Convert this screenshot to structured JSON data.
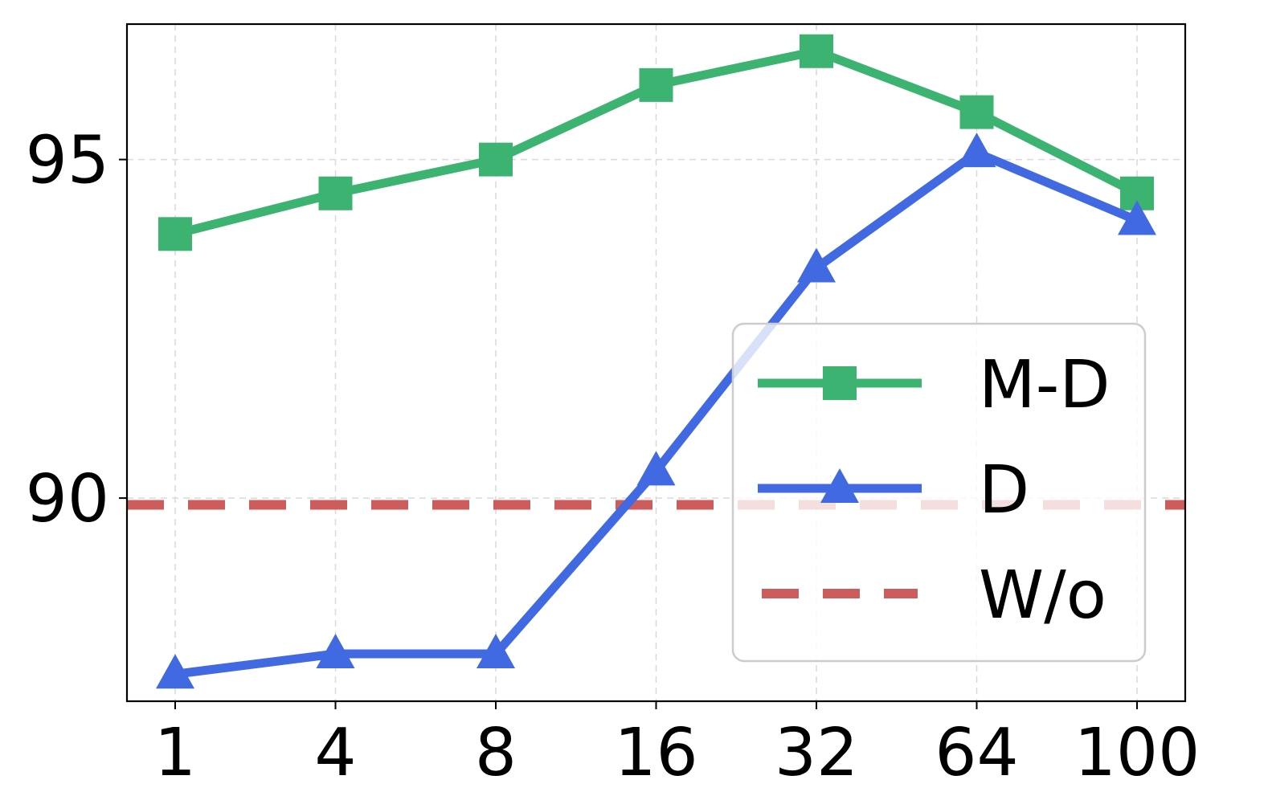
{
  "chart_data": {
    "type": "line",
    "categories": [
      "1",
      "4",
      "8",
      "16",
      "32",
      "64",
      "100"
    ],
    "yticks": [
      90,
      95
    ],
    "ylim": [
      87,
      97
    ],
    "grid": true,
    "legend_position": "center-right",
    "series": [
      {
        "name": "M-D",
        "values": [
          93.9,
          94.5,
          95.0,
          96.1,
          96.6,
          95.7,
          94.5
        ],
        "color": "#3cb371",
        "marker": "square",
        "style": "solid"
      },
      {
        "name": "D",
        "values": [
          87.4,
          87.7,
          87.7,
          90.4,
          93.4,
          95.1,
          94.1
        ],
        "color": "#4169e1",
        "marker": "triangle",
        "style": "solid"
      },
      {
        "name": "W/o",
        "values": [
          89.9,
          89.9,
          89.9,
          89.9,
          89.9,
          89.9,
          89.9
        ],
        "color": "#cd5c5c",
        "marker": "none",
        "style": "dashed"
      }
    ]
  }
}
